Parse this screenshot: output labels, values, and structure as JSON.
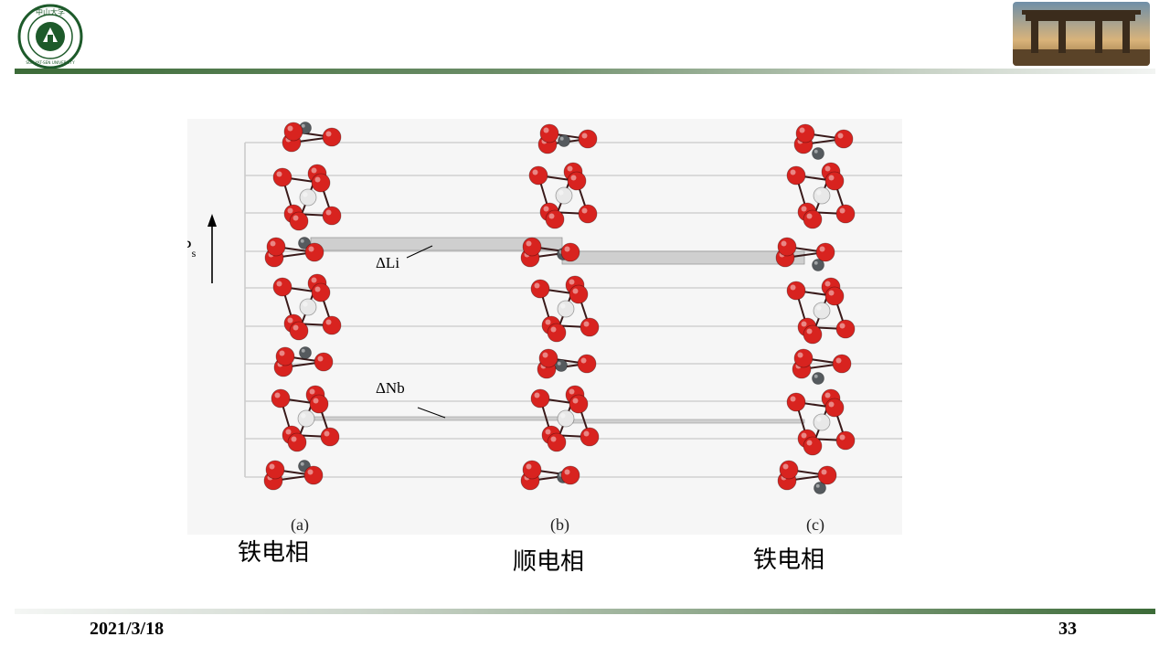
{
  "header": {
    "logo_icon": "university-seal-icon",
    "logo_text": "SUN YAT-SEN UNIVERSITY",
    "logo_chars": "中山大学",
    "photo_icon": "memorial-gate-photo"
  },
  "figure": {
    "ps_label_main": "P",
    "ps_label_sub": "s",
    "delta_li_label": "ΔLi",
    "delta_nb_label": "ΔNb",
    "panel_a_label": "(a)",
    "panel_b_label": "(b)",
    "panel_c_label": "(c)",
    "colors": {
      "oxygen": "#d8231f",
      "niobium": "#e8e8e8",
      "lithium": "#555a5e",
      "bond": "#3a1a1a",
      "grid": "#c9c9c9",
      "band": "#cfcfcf"
    }
  },
  "captions": {
    "a": "铁电相",
    "b": "顺电相",
    "c": "铁电相"
  },
  "footer": {
    "date": "2021/3/18",
    "page": "33"
  },
  "theme": {
    "accent_green": "#3c6b38"
  }
}
